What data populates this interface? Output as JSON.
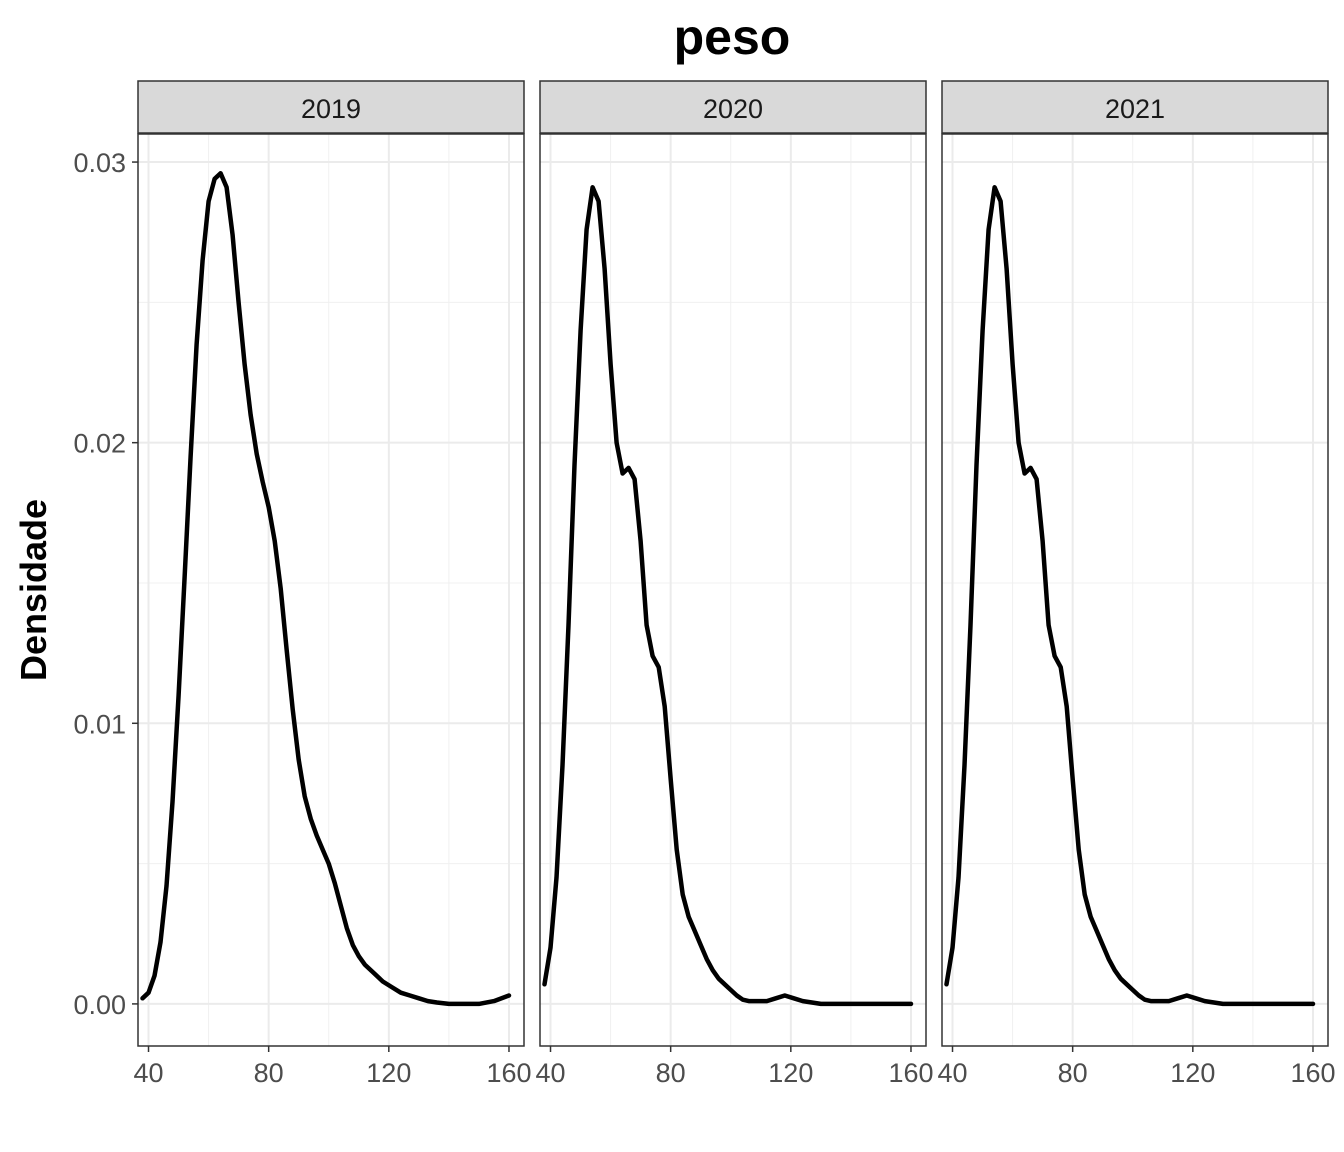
{
  "chart_data": {
    "type": "line",
    "title": "peso",
    "ylabel": "Densidade",
    "xlabel": "",
    "xlim": [
      36.5,
      165
    ],
    "ylim": [
      -0.0015,
      0.031
    ],
    "x_ticks": [
      40,
      80,
      120,
      160
    ],
    "y_ticks": [
      0.0,
      0.01,
      0.02,
      0.03
    ],
    "y_tick_labels": [
      "0.00",
      "0.01",
      "0.02",
      "0.03"
    ],
    "grid": true,
    "line_color": "#000000",
    "strip_fill": "#d9d9d9",
    "panels": [
      {
        "name": "2019",
        "x": [
          38,
          40,
          42,
          44,
          46,
          48,
          50,
          52,
          54,
          56,
          58,
          60,
          62,
          64,
          66,
          68,
          70,
          72,
          74,
          76,
          78,
          80,
          82,
          84,
          86,
          88,
          90,
          92,
          94,
          96,
          98,
          100,
          102,
          104,
          106,
          108,
          110,
          112,
          115,
          118,
          121,
          124,
          127,
          130,
          133,
          136,
          140,
          145,
          150,
          155,
          160
        ],
        "y": [
          0.0002,
          0.0004,
          0.001,
          0.0022,
          0.0042,
          0.0072,
          0.011,
          0.0152,
          0.0195,
          0.0235,
          0.0265,
          0.0286,
          0.0294,
          0.0296,
          0.0291,
          0.0274,
          0.025,
          0.0228,
          0.021,
          0.0196,
          0.0186,
          0.0177,
          0.0165,
          0.0148,
          0.0126,
          0.0105,
          0.0087,
          0.0074,
          0.0066,
          0.006,
          0.0055,
          0.005,
          0.0043,
          0.0035,
          0.0027,
          0.0021,
          0.0017,
          0.0014,
          0.0011,
          0.0008,
          0.0006,
          0.0004,
          0.0003,
          0.0002,
          0.0001,
          5e-05,
          0.0,
          0.0,
          0.0,
          0.0001,
          0.0003
        ]
      },
      {
        "name": "2020",
        "x": [
          38,
          40,
          42,
          44,
          46,
          48,
          50,
          52,
          54,
          56,
          58,
          60,
          62,
          64,
          66,
          68,
          70,
          72,
          74,
          76,
          78,
          80,
          82,
          84,
          86,
          88,
          90,
          92,
          94,
          96,
          98,
          100,
          102,
          104,
          106,
          108,
          110,
          112,
          115,
          118,
          121,
          124,
          127,
          130,
          133,
          136,
          140,
          145,
          150,
          155,
          160
        ],
        "y": [
          0.0007,
          0.002,
          0.0045,
          0.0085,
          0.0135,
          0.0192,
          0.024,
          0.0276,
          0.0291,
          0.0286,
          0.0262,
          0.0228,
          0.02,
          0.0189,
          0.0191,
          0.0187,
          0.0165,
          0.0135,
          0.0124,
          0.012,
          0.0106,
          0.008,
          0.0055,
          0.0039,
          0.0031,
          0.0026,
          0.0021,
          0.0016,
          0.0012,
          0.0009,
          0.0007,
          0.0005,
          0.0003,
          0.00015,
          0.0001,
          0.0001,
          0.0001,
          0.0001,
          0.0002,
          0.0003,
          0.0002,
          0.0001,
          5e-05,
          0.0,
          0.0,
          0.0,
          0.0,
          0.0,
          0.0,
          0.0,
          0.0
        ]
      },
      {
        "name": "2021",
        "x": [
          38,
          40,
          42,
          44,
          46,
          48,
          50,
          52,
          54,
          56,
          58,
          60,
          62,
          64,
          66,
          68,
          70,
          72,
          74,
          76,
          78,
          80,
          82,
          84,
          86,
          88,
          90,
          92,
          94,
          96,
          98,
          100,
          102,
          104,
          106,
          108,
          110,
          112,
          115,
          118,
          121,
          124,
          127,
          130,
          133,
          136,
          140,
          145,
          150,
          155,
          160
        ],
        "y": [
          0.0007,
          0.002,
          0.0045,
          0.0085,
          0.0135,
          0.0192,
          0.024,
          0.0276,
          0.0291,
          0.0286,
          0.0262,
          0.0228,
          0.02,
          0.0189,
          0.0191,
          0.0187,
          0.0165,
          0.0135,
          0.0124,
          0.012,
          0.0106,
          0.008,
          0.0055,
          0.0039,
          0.0031,
          0.0026,
          0.0021,
          0.0016,
          0.0012,
          0.0009,
          0.0007,
          0.0005,
          0.0003,
          0.00015,
          0.0001,
          0.0001,
          0.0001,
          0.0001,
          0.0002,
          0.0003,
          0.0002,
          0.0001,
          5e-05,
          0.0,
          0.0,
          0.0,
          0.0,
          0.0,
          0.0,
          0.0,
          0.0
        ]
      }
    ]
  }
}
